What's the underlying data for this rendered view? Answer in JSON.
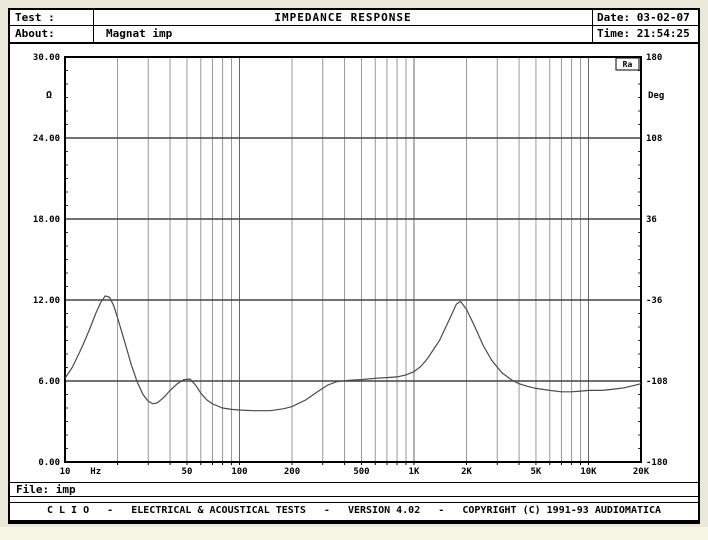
{
  "header": {
    "test_label": "Test :",
    "title": "IMPEDANCE RESPONSE",
    "about_label": "About:",
    "about_value": "Magnat imp",
    "date_label": "Date:",
    "date_value": "03-02-07",
    "time_label": "Time:",
    "time_value": "21:54:25"
  },
  "file_bar": {
    "label": "File:",
    "value": "imp"
  },
  "footer": {
    "text": "C L I O   -   ELECTRICAL & ACOUSTICAL TESTS   -   VERSION 4.02   -   COPYRIGHT (C) 1991-93 AUDIOMATICA"
  },
  "legend_box": "Ra",
  "colors": {
    "background": "#ffffff",
    "page": "#e9e8d9",
    "border": "#000000",
    "grid_minor": "#999999",
    "grid_major": "#666666",
    "grid_horizontal": "#444444",
    "curve": "#4a4a4a",
    "text": "#000000"
  },
  "chart_data": {
    "type": "line",
    "title": "IMPEDANCE RESPONSE",
    "grid": true,
    "x_axis": {
      "unit": "Hz",
      "unit_anchor_hz": 15,
      "scale": "log",
      "min": 10,
      "max": 20000,
      "ticks": [
        {
          "v": 10,
          "label": "10"
        },
        {
          "v": 50,
          "label": "50"
        },
        {
          "v": 100,
          "label": "100"
        },
        {
          "v": 200,
          "label": "200"
        },
        {
          "v": 500,
          "label": "500"
        },
        {
          "v": 1000,
          "label": "1K"
        },
        {
          "v": 2000,
          "label": "2K"
        },
        {
          "v": 5000,
          "label": "5K"
        },
        {
          "v": 10000,
          "label": "10K"
        },
        {
          "v": 20000,
          "label": "20K"
        }
      ]
    },
    "y_left": {
      "unit": "Ω",
      "min": 0,
      "max": 30,
      "ticks": [
        {
          "v": 30,
          "label": "30.00"
        },
        {
          "v": 24,
          "label": "24.00"
        },
        {
          "v": 18,
          "label": "18.00"
        },
        {
          "v": 12,
          "label": "12.00"
        },
        {
          "v": 6,
          "label": "6.00"
        },
        {
          "v": 0,
          "label": "0.00"
        }
      ]
    },
    "y_right": {
      "unit": "Deg",
      "min": -180,
      "max": 180,
      "ticks": [
        {
          "v": 180,
          "label": "180"
        },
        {
          "v": 108,
          "label": "108"
        },
        {
          "v": 36,
          "label": "36"
        },
        {
          "v": -36,
          "label": "-36"
        },
        {
          "v": -108,
          "label": "-108"
        },
        {
          "v": -180,
          "label": "-180"
        }
      ]
    },
    "series": [
      {
        "name": "impedance",
        "unit": "Ω",
        "points": [
          [
            10,
            6.2
          ],
          [
            11,
            7.0
          ],
          [
            12,
            8.0
          ],
          [
            13,
            9.0
          ],
          [
            14,
            10.0
          ],
          [
            15,
            11.0
          ],
          [
            16,
            11.8
          ],
          [
            17,
            12.3
          ],
          [
            18,
            12.2
          ],
          [
            19,
            11.6
          ],
          [
            20,
            10.7
          ],
          [
            22,
            8.9
          ],
          [
            24,
            7.2
          ],
          [
            26,
            5.9
          ],
          [
            28,
            5.0
          ],
          [
            30,
            4.5
          ],
          [
            32,
            4.3
          ],
          [
            34,
            4.4
          ],
          [
            37,
            4.8
          ],
          [
            40,
            5.3
          ],
          [
            44,
            5.8
          ],
          [
            48,
            6.1
          ],
          [
            52,
            6.15
          ],
          [
            56,
            5.7
          ],
          [
            60,
            5.1
          ],
          [
            65,
            4.6
          ],
          [
            70,
            4.3
          ],
          [
            80,
            4.0
          ],
          [
            90,
            3.9
          ],
          [
            100,
            3.85
          ],
          [
            120,
            3.8
          ],
          [
            150,
            3.8
          ],
          [
            180,
            3.95
          ],
          [
            200,
            4.1
          ],
          [
            240,
            4.6
          ],
          [
            280,
            5.2
          ],
          [
            320,
            5.7
          ],
          [
            360,
            5.95
          ],
          [
            420,
            6.05
          ],
          [
            500,
            6.1
          ],
          [
            600,
            6.2
          ],
          [
            700,
            6.25
          ],
          [
            800,
            6.3
          ],
          [
            900,
            6.45
          ],
          [
            1000,
            6.7
          ],
          [
            1100,
            7.1
          ],
          [
            1200,
            7.7
          ],
          [
            1400,
            9.0
          ],
          [
            1600,
            10.6
          ],
          [
            1750,
            11.7
          ],
          [
            1850,
            11.9
          ],
          [
            2000,
            11.3
          ],
          [
            2200,
            10.2
          ],
          [
            2500,
            8.6
          ],
          [
            2800,
            7.5
          ],
          [
            3200,
            6.6
          ],
          [
            3600,
            6.1
          ],
          [
            4000,
            5.8
          ],
          [
            4500,
            5.6
          ],
          [
            5000,
            5.45
          ],
          [
            6000,
            5.3
          ],
          [
            7000,
            5.2
          ],
          [
            8000,
            5.2
          ],
          [
            9000,
            5.25
          ],
          [
            10000,
            5.3
          ],
          [
            12000,
            5.3
          ],
          [
            14000,
            5.4
          ],
          [
            16000,
            5.5
          ],
          [
            18000,
            5.65
          ],
          [
            20000,
            5.8
          ]
        ]
      }
    ]
  }
}
